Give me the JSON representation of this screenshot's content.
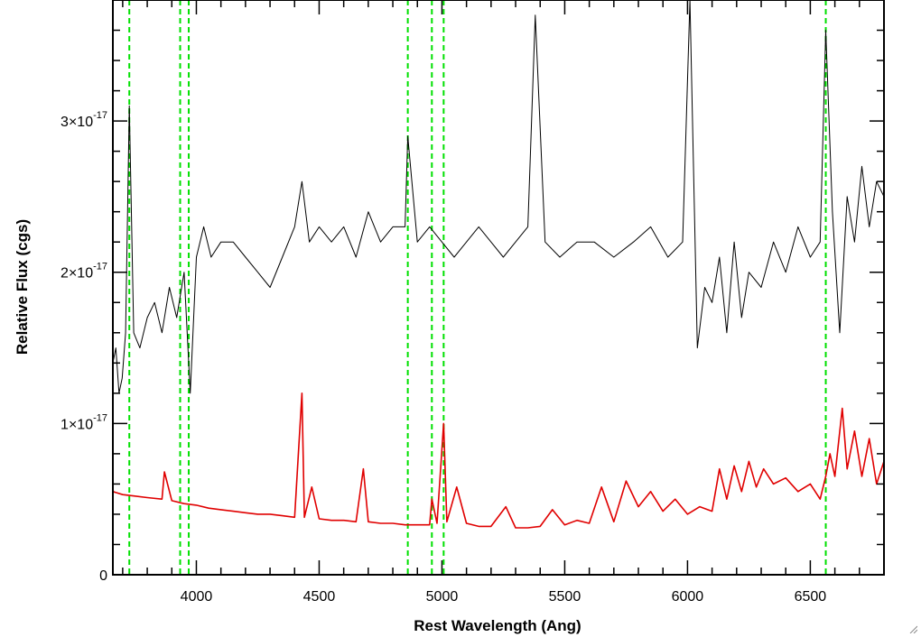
{
  "chart_data": {
    "type": "line",
    "xlabel": "Rest Wavelength (Ang)",
    "ylabel": "Relative Flux (cgs)",
    "xlim": [
      3660,
      6800
    ],
    "ylim": [
      0,
      3.8e-17
    ],
    "x_ticks": [
      4000,
      4500,
      5000,
      5500,
      6000,
      6500
    ],
    "x_tick_labels": [
      "4000",
      "4500",
      "5000",
      "5500",
      "6000",
      "6500"
    ],
    "y_ticks": [
      0,
      1e-17,
      2e-17,
      3e-17
    ],
    "y_tick_labels": [
      {
        "mantissa": "0",
        "exponent": ""
      },
      {
        "mantissa": "1×10",
        "exponent": "-17"
      },
      {
        "mantissa": "2×10",
        "exponent": "-17"
      },
      {
        "mantissa": "3×10",
        "exponent": "-17"
      }
    ],
    "grid": false,
    "colors": {
      "spectrum": "#000000",
      "model": "#e00000",
      "lines": "#00e000",
      "axes": "#000000"
    },
    "vertical_lines": [
      3727,
      3934,
      3969,
      4861,
      4959,
      5007,
      6563
    ],
    "series": [
      {
        "role": "observed spectrum",
        "color": "#000000",
        "x": [
          3660,
          3672,
          3685,
          3698,
          3712,
          3727,
          3745,
          3770,
          3800,
          3830,
          3860,
          3890,
          3920,
          3950,
          3975,
          4000,
          4030,
          4060,
          4100,
          4150,
          4200,
          4250,
          4300,
          4350,
          4400,
          4430,
          4460,
          4500,
          4550,
          4600,
          4650,
          4700,
          4750,
          4800,
          4850,
          4861,
          4900,
          4950,
          5000,
          5050,
          5100,
          5150,
          5200,
          5250,
          5300,
          5350,
          5380,
          5420,
          5480,
          5550,
          5620,
          5700,
          5780,
          5850,
          5920,
          5980,
          6010,
          6040,
          6070,
          6100,
          6130,
          6160,
          6190,
          6220,
          6250,
          6300,
          6350,
          6400,
          6450,
          6500,
          6540,
          6563,
          6590,
          6620,
          6650,
          6680,
          6710,
          6740,
          6770,
          6800
        ],
        "y": [
          1.4e-17,
          1.5e-17,
          1.2e-17,
          1.3e-17,
          1.6e-17,
          3.1e-17,
          1.6e-17,
          1.5e-17,
          1.7e-17,
          1.8e-17,
          1.6e-17,
          1.9e-17,
          1.7e-17,
          2e-17,
          1.2e-17,
          2.1e-17,
          2.3e-17,
          2.1e-17,
          2.2e-17,
          2.2e-17,
          2.1e-17,
          2e-17,
          1.9e-17,
          2.1e-17,
          2.3e-17,
          2.6e-17,
          2.2e-17,
          2.3e-17,
          2.2e-17,
          2.3e-17,
          2.1e-17,
          2.4e-17,
          2.2e-17,
          2.3e-17,
          2.3e-17,
          2.9e-17,
          2.2e-17,
          2.3e-17,
          2.2e-17,
          2.1e-17,
          2.2e-17,
          2.3e-17,
          2.2e-17,
          2.1e-17,
          2.2e-17,
          2.3e-17,
          3.7e-17,
          2.2e-17,
          2.1e-17,
          2.2e-17,
          2.2e-17,
          2.1e-17,
          2.2e-17,
          2.3e-17,
          2.1e-17,
          2.2e-17,
          3.8e-17,
          1.5e-17,
          1.9e-17,
          1.8e-17,
          2.1e-17,
          1.6e-17,
          2.2e-17,
          1.7e-17,
          2e-17,
          1.9e-17,
          2.2e-17,
          2e-17,
          2.3e-17,
          2.1e-17,
          2.2e-17,
          3.6e-17,
          2.4e-17,
          1.6e-17,
          2.5e-17,
          2.2e-17,
          2.7e-17,
          2.3e-17,
          2.6e-17,
          2.5e-17
        ]
      },
      {
        "role": "model continuum",
        "color": "#e00000",
        "x": [
          3660,
          3700,
          3750,
          3800,
          3860,
          3870,
          3900,
          3950,
          4000,
          4050,
          4100,
          4150,
          4200,
          4250,
          4300,
          4350,
          4400,
          4430,
          4440,
          4470,
          4500,
          4550,
          4600,
          4650,
          4680,
          4700,
          4750,
          4800,
          4850,
          4900,
          4950,
          4959,
          4980,
          5007,
          5020,
          5060,
          5100,
          5150,
          5200,
          5260,
          5300,
          5350,
          5400,
          5450,
          5500,
          5550,
          5600,
          5650,
          5700,
          5750,
          5800,
          5850,
          5900,
          5950,
          6000,
          6050,
          6100,
          6130,
          6160,
          6190,
          6220,
          6250,
          6280,
          6310,
          6350,
          6400,
          6450,
          6500,
          6540,
          6563,
          6580,
          6600,
          6630,
          6650,
          6680,
          6710,
          6740,
          6770,
          6800
        ],
        "y": [
          5.5e-18,
          5.3e-18,
          5.2e-18,
          5.1e-18,
          5e-18,
          6.8e-18,
          4.9e-18,
          4.7e-18,
          4.6e-18,
          4.4e-18,
          4.3e-18,
          4.2e-18,
          4.1e-18,
          4e-18,
          4e-18,
          3.9e-18,
          3.8e-18,
          1.2e-17,
          3.8e-18,
          5.8e-18,
          3.7e-18,
          3.6e-18,
          3.6e-18,
          3.5e-18,
          7e-18,
          3.5e-18,
          3.4e-18,
          3.4e-18,
          3.3e-18,
          3.3e-18,
          3.3e-18,
          5e-18,
          3.4e-18,
          1e-17,
          3.5e-18,
          5.8e-18,
          3.4e-18,
          3.2e-18,
          3.2e-18,
          4.5e-18,
          3.1e-18,
          3.1e-18,
          3.2e-18,
          4.3e-18,
          3.3e-18,
          3.6e-18,
          3.4e-18,
          5.8e-18,
          3.5e-18,
          6.2e-18,
          4.5e-18,
          5.5e-18,
          4.2e-18,
          5e-18,
          4e-18,
          4.5e-18,
          4.2e-18,
          7e-18,
          5e-18,
          7.2e-18,
          5.5e-18,
          7.5e-18,
          5.8e-18,
          7e-18,
          6e-18,
          6.4e-18,
          5.5e-18,
          6e-18,
          5e-18,
          6.5e-18,
          8e-18,
          6.5e-18,
          1.1e-17,
          7e-18,
          9.5e-18,
          6.5e-18,
          9e-18,
          6e-18,
          7.5e-18
        ]
      }
    ]
  }
}
